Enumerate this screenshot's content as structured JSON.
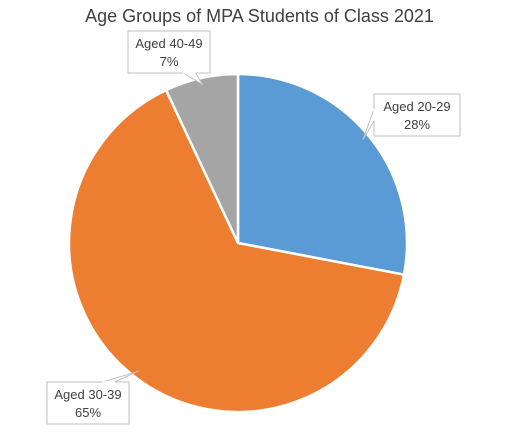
{
  "chart_data": {
    "type": "pie",
    "title": "Age Groups of MPA Students of Class 2021",
    "categories": [
      "Aged 20-29",
      "Aged 30-39",
      "Aged 40-49"
    ],
    "values": [
      28,
      65,
      7
    ],
    "value_labels": [
      "28%",
      "65%",
      "7%"
    ],
    "colors": [
      "#5b9bd5",
      "#ed7d31",
      "#a5a5a5"
    ],
    "start_angle_deg": 0,
    "direction": "clockwise",
    "legend": "none",
    "data_labels": "callout"
  }
}
